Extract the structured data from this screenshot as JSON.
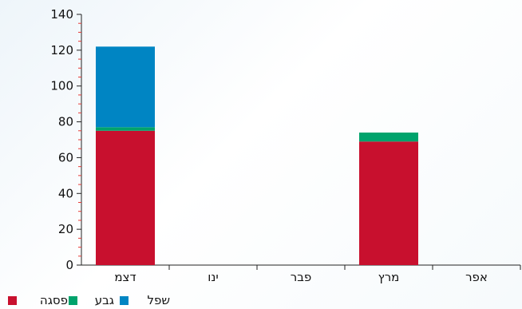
{
  "chart_data": {
    "type": "bar",
    "stacked": true,
    "categories": [
      "דצמ",
      "ינו",
      "פבר",
      "מרץ",
      "אפר"
    ],
    "series": [
      {
        "name": "פסגה",
        "color": "#c8102e",
        "values": [
          75,
          0,
          0,
          69,
          0
        ]
      },
      {
        "name": "גבע",
        "color": "#00a36c",
        "values": [
          2,
          0,
          0,
          5,
          0
        ]
      },
      {
        "name": "שפל",
        "color": "#0085c3",
        "values": [
          45,
          0,
          0,
          0,
          0
        ]
      }
    ],
    "ylim": [
      0,
      140
    ],
    "y_ticks": [
      0,
      20,
      40,
      60,
      80,
      100,
      120,
      140
    ],
    "minor_tick_color": "#e53935",
    "grid": false,
    "legend_position": "bottom-left"
  }
}
